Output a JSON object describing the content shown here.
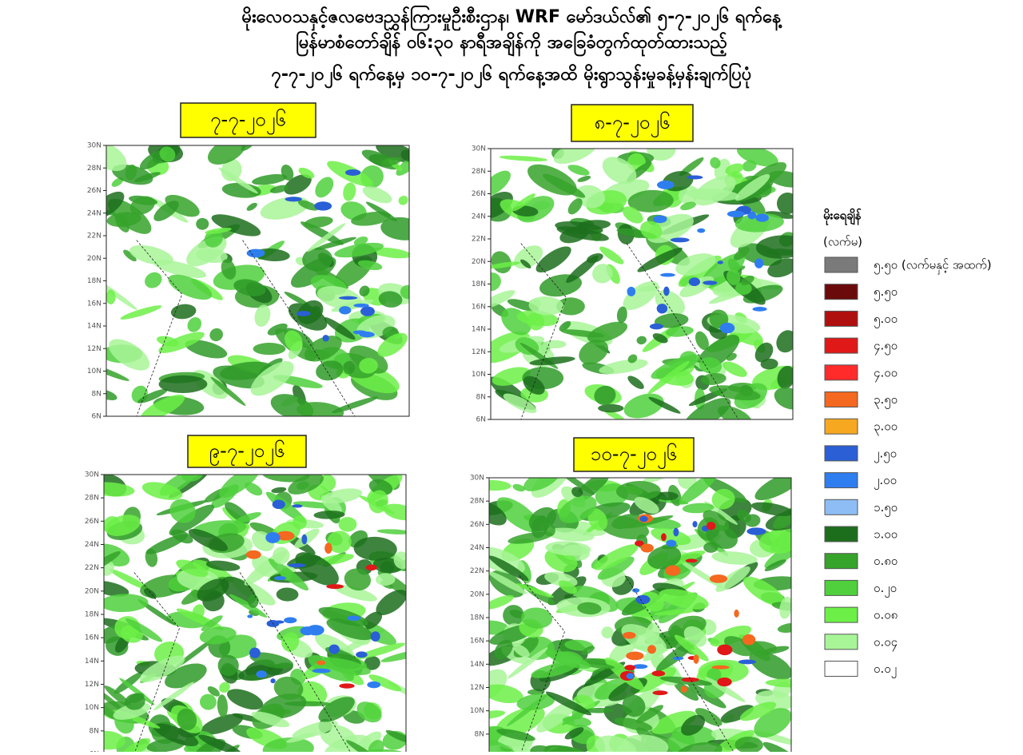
{
  "title_lines": [
    "မိုးလေဝသနှင့်ဇလဗေဒညွှန်ကြားမှုဦးစီးဌာန၊ WRF မော်ဒယ်လ်၏ ၅-၇-၂၀၂၆ ရက်နေ့",
    "မြန်မာစံတော်ချိန် ၀၆:၃၀ နာရီအချိန်ကို အခြေခံတွက်ထုတ်ထားသည့်",
    "၇-၇-၂၀၂၆ ရက်နေ့မှ ၁၀-၇-၂၀၂၆ ရက်နေ့အထိ မိုးရွာသွန်းမှုခန့်မှန်းချက်ပြပုံ"
  ],
  "panels": [
    {
      "date": "၇-၇-၂၀၂၆"
    },
    {
      "date": "၈-၇-၂၀၂၆"
    },
    {
      "date": "၉-၇-၂၀၂၆"
    },
    {
      "date": "၁၀-၇-၂၀၂၆"
    }
  ],
  "lat_labels": [
    "30N",
    "28N",
    "26N",
    "24N",
    "22N",
    "20N",
    "18N",
    "16N",
    "14N",
    "12N",
    "10N",
    "8N",
    "6N"
  ],
  "legend": {
    "title": "မိုးရေချိန်",
    "unit": "(လက်မ)",
    "items": [
      {
        "label": "၅.၅၀ (လက်မနှင့် အထက်)",
        "color": "#7a7a7a"
      },
      {
        "label": "၅.၅၀",
        "color": "#6b0a0a"
      },
      {
        "label": "၅.၀၀",
        "color": "#b00f0f"
      },
      {
        "label": "၄.၅၀",
        "color": "#e01818"
      },
      {
        "label": "၄.၀၀",
        "color": "#ff2a2a"
      },
      {
        "label": "၃.၅၀",
        "color": "#f4681f"
      },
      {
        "label": "၃.၀၀",
        "color": "#f7a821"
      },
      {
        "label": "၂.၅၀",
        "color": "#2a5fd6"
      },
      {
        "label": "၂.၀၀",
        "color": "#2f7ef0"
      },
      {
        "label": "၁.၅၀",
        "color": "#8dbdf4"
      },
      {
        "label": "၁.၀၀",
        "color": "#1c6e1c"
      },
      {
        "label": "၀.၈၀",
        "color": "#36a32a"
      },
      {
        "label": "၀.၂၀",
        "color": "#4fd03c"
      },
      {
        "label": "၀.၀၈",
        "color": "#6cf047"
      },
      {
        "label": "၀.၀၄",
        "color": "#a8f598"
      },
      {
        "label": "၀.၀၂",
        "color": "#ffffff"
      }
    ]
  }
}
